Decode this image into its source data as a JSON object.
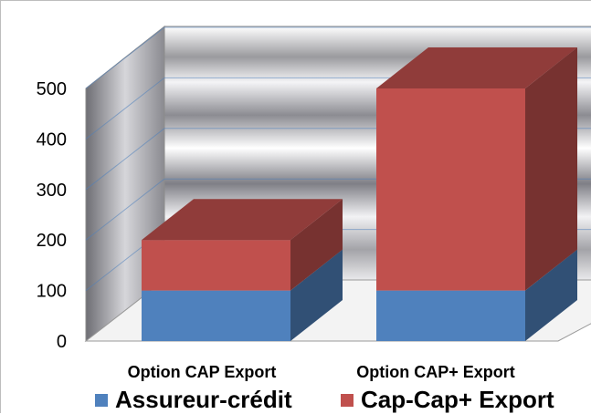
{
  "chart_data": {
    "type": "bar",
    "stacked": true,
    "three_d": true,
    "categories": [
      "Option CAP Export",
      "Option CAP+ Export"
    ],
    "series": [
      {
        "name": "Assureur-crédit",
        "values": [
          100,
          100
        ],
        "color": "#4f81bd"
      },
      {
        "name": "Cap-Cap+ Export",
        "values": [
          100,
          400
        ],
        "color": "#c0504d"
      }
    ],
    "y_ticks": [
      0,
      100,
      200,
      300,
      400,
      500
    ],
    "ylim": [
      0,
      500
    ],
    "grid": true,
    "legend_position": "bottom",
    "title": "",
    "xlabel": "",
    "ylabel": ""
  }
}
